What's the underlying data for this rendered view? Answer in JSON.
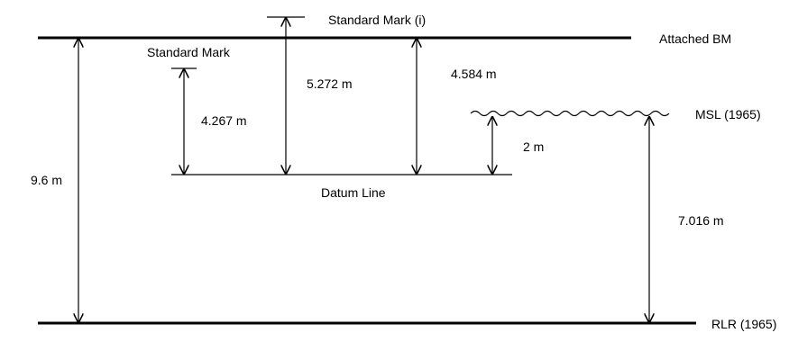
{
  "diagram": {
    "levels": {
      "attached_bm": "Attached BM",
      "msl": "MSL (1965)",
      "rlr": "RLR (1965)",
      "datum_line": "Datum Line",
      "standard_mark": "Standard Mark",
      "standard_mark_i": "Standard Mark (i)"
    },
    "dimensions": {
      "bm_to_rlr": "9.6 m",
      "standard_mark_to_datum": "4.267 m",
      "standard_mark_i_to_datum": "5.272 m",
      "bm_to_datum": "4.584 m",
      "msl_to_datum": "2 m",
      "msl_to_rlr": "7.016 m"
    }
  }
}
